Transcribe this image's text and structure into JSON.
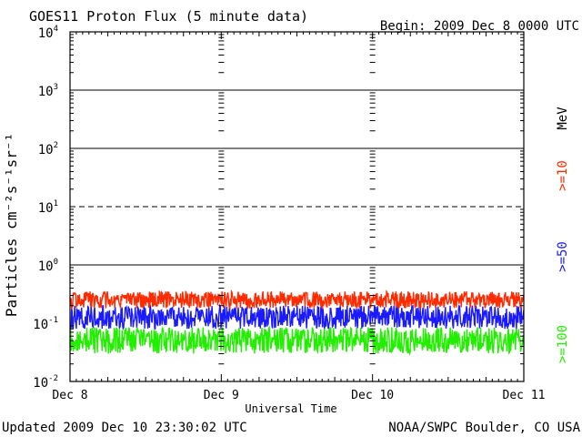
{
  "chart_data": {
    "type": "line",
    "title": "GOES11 Proton Flux (5 minute data)",
    "begin_label": "Begin: 2009 Dec 8 0000 UTC",
    "xlabel": "Universal Time",
    "ylabel": "Particles cm⁻²s⁻¹sr⁻¹",
    "y_scale": "log",
    "ylim": [
      0.01,
      10000
    ],
    "y_tick_labels": [
      {
        "base": "10",
        "exp": "-2",
        "value": 0.01
      },
      {
        "base": "10",
        "exp": "-1",
        "value": 0.1
      },
      {
        "base": "10",
        "exp": "0",
        "value": 1
      },
      {
        "base": "10",
        "exp": "1",
        "value": 10
      },
      {
        "base": "10",
        "exp": "2",
        "value": 100
      },
      {
        "base": "10",
        "exp": "3",
        "value": 1000
      },
      {
        "base": "10",
        "exp": "4",
        "value": 10000
      }
    ],
    "x_tick_labels": [
      "Dec 8",
      "Dec 9",
      "Dec 10",
      "Dec 11"
    ],
    "xlim_days": [
      0,
      3
    ],
    "dashed_reference_levels": [
      10
    ],
    "solid_reference_levels": [
      1,
      100,
      1000
    ],
    "unit_label": "MeV",
    "series": [
      {
        "name": ">=10",
        "color": "#ff2a00",
        "typical_range": [
          0.18,
          0.35
        ],
        "values": []
      },
      {
        "name": ">=50",
        "color": "#1a1aff",
        "typical_range": [
          0.08,
          0.2
        ],
        "values": []
      },
      {
        "name": ">=100",
        "color": "#22ee00",
        "typical_range": [
          0.03,
          0.085
        ],
        "values": []
      }
    ]
  },
  "footer": {
    "updated": "Updated 2009 Dec 10 23:30:02 UTC",
    "source": "NOAA/SWPC Boulder, CO USA"
  }
}
